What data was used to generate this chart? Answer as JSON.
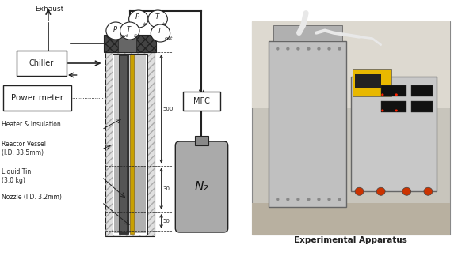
{
  "bg_color": "#ffffff",
  "dark": "#222222",
  "gray_light": "#d8d8d8",
  "gray_med": "#aaaaaa",
  "gray_dark": "#555555",
  "gold": "#c8a000",
  "exhaust_text": "Exhaust",
  "chiller_text": "Chiller",
  "power_meter_text": "Power meter",
  "mfc_text": "MFC",
  "n2_text": "N₂",
  "exp_apparatus_text": "Experimental Apparatus",
  "labels": [
    "Heater & Insulation",
    "Reactor Vessel",
    "(I.D. 33.5mm)",
    "Liquid Tin",
    "(3.0 kg)",
    "Nozzle (I.D. 3.2mm)"
  ],
  "dim_500": "500",
  "dim_30": "30",
  "dim_50": "50"
}
